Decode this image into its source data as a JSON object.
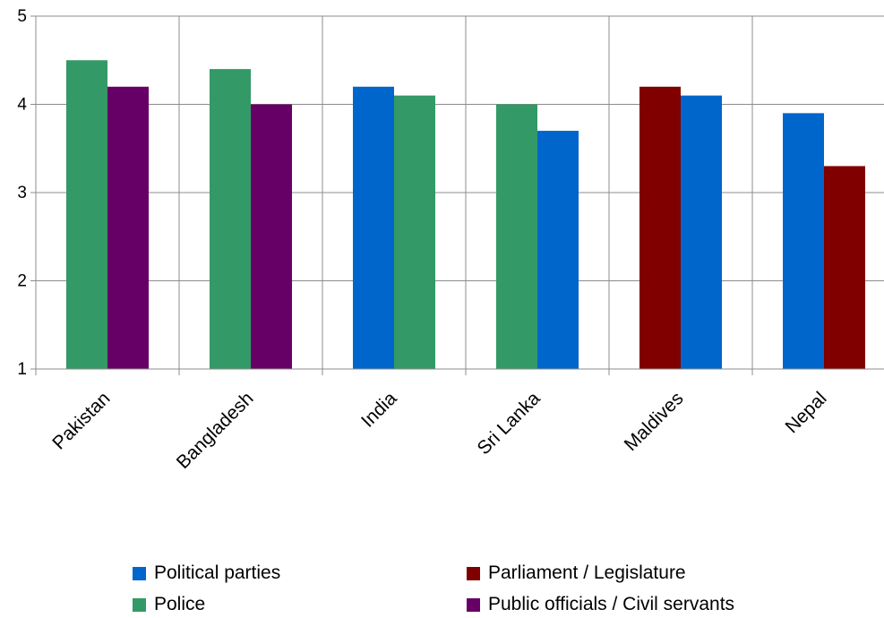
{
  "chart_data": {
    "type": "bar",
    "categories": [
      "Pakistan",
      "Bangladesh",
      "India",
      "Sri Lanka",
      "Maldives",
      "Nepal"
    ],
    "ylim": [
      1,
      5
    ],
    "yticks": [
      "1",
      "2",
      "3",
      "4",
      "5"
    ],
    "grid": true,
    "legend_position": "bottom",
    "bars": [
      [
        {
          "series": "Police",
          "value": 4.5
        },
        {
          "series": "Public officials / Civil servants",
          "value": 4.2
        }
      ],
      [
        {
          "series": "Police",
          "value": 4.4
        },
        {
          "series": "Public officials / Civil servants",
          "value": 4.0
        }
      ],
      [
        {
          "series": "Political parties",
          "value": 4.2
        },
        {
          "series": "Police",
          "value": 4.1
        }
      ],
      [
        {
          "series": "Police",
          "value": 4.0
        },
        {
          "series": "Political parties",
          "value": 3.7
        }
      ],
      [
        {
          "series": "Parliament / Legislature",
          "value": 4.2
        },
        {
          "series": "Political parties",
          "value": 4.1
        }
      ],
      [
        {
          "series": "Political parties",
          "value": 3.9
        },
        {
          "series": "Parliament / Legislature",
          "value": 3.3
        }
      ]
    ],
    "series": [
      {
        "name": "Political parties",
        "color": "#0066cc"
      },
      {
        "name": "Police",
        "color": "#339966"
      },
      {
        "name": "Parliament / Legislature",
        "color": "#800000"
      },
      {
        "name": "Public officials / Civil servants",
        "color": "#660066"
      }
    ]
  }
}
